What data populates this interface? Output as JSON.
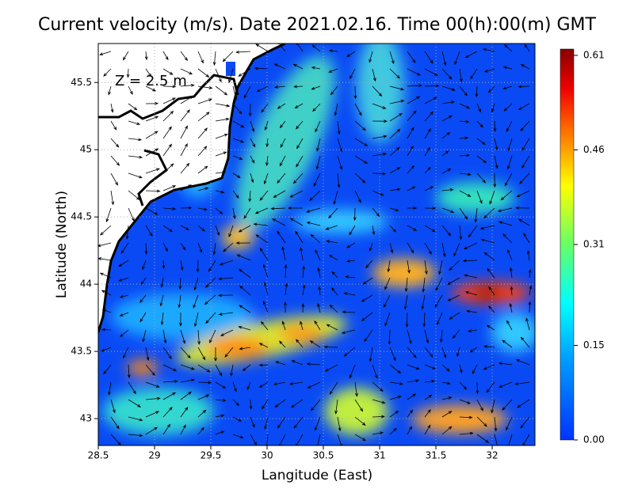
{
  "chart_data": {
    "type": "map",
    "title": "Current velocity (m/s). Date 2021.02.16. Time 00(h):00(m) GMT",
    "annotation": "Z = 2.5 m",
    "xlabel": "Langitude (East)",
    "ylabel": "Latitude (North)",
    "xlim": [
      28.5,
      32.38
    ],
    "xticks": [
      28.5,
      29,
      29.5,
      30,
      30.5,
      31,
      31.5,
      32
    ],
    "ylim": [
      42.8,
      45.79
    ],
    "yticks": [
      43,
      43.5,
      44,
      44.5,
      45,
      45.5
    ],
    "grid": true,
    "colorbar": {
      "lim": [
        0,
        0.62
      ],
      "ticks": [
        {
          "value": 0,
          "label": "0.00"
        },
        0.15,
        0.31,
        0.46,
        0.61
      ]
    }
  }
}
